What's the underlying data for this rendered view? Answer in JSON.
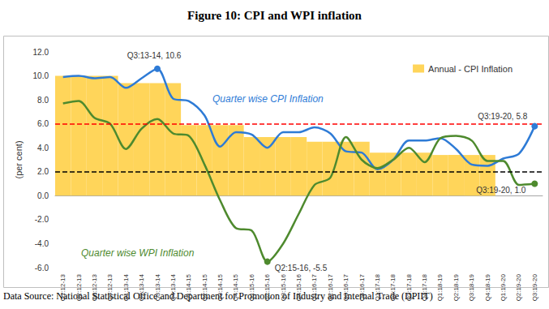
{
  "chart_data": {
    "type": "line",
    "title": "Figure 10: CPI and WPI inflation",
    "y_label": "(per cent)",
    "source": "Data Source: National Statistical Office and Department for Promotion of Industry and Internal Trade (DPIIT)",
    "categories": [
      "Q1:12-13",
      "Q2:12-13",
      "Q3:12-13",
      "Q4:12-13",
      "Q1:13-14",
      "Q2:13-14",
      "Q3:13-14",
      "Q4:13-14",
      "Q1:14-15",
      "Q2:14-15",
      "Q3:14-15",
      "Q4:14-15",
      "Q1:15-16",
      "Q2:15-16",
      "Q3:15-16",
      "Q4:15-16",
      "Q1:16-17",
      "Q2:16-17",
      "Q3:16-17",
      "Q4:16-17",
      "Q1:17-18",
      "Q2:17-18",
      "Q3:17-18",
      "Q4:17-18",
      "Q1:18-19",
      "Q2:18-19",
      "Q3:18-19",
      "Q4:18-19",
      "Q1:19-20",
      "Q2:19-20",
      "Q3:19-20"
    ],
    "series": [
      {
        "name": "Annual - CPI Inflation",
        "type": "bar",
        "color": "#FFD55A",
        "values": [
          10.0,
          10.0,
          10.0,
          10.0,
          9.4,
          9.4,
          9.4,
          9.4,
          5.9,
          5.9,
          5.9,
          5.9,
          4.9,
          4.9,
          4.9,
          4.9,
          4.5,
          4.5,
          4.5,
          4.5,
          3.6,
          3.6,
          3.6,
          3.6,
          3.4,
          3.4,
          3.4,
          3.4,
          null,
          null,
          null
        ]
      },
      {
        "name": "Quarter wise CPI Inflation",
        "type": "line",
        "color": "#2E7BD6",
        "values": [
          9.9,
          10.0,
          9.8,
          9.9,
          9.0,
          9.8,
          10.6,
          8.1,
          7.9,
          6.7,
          4.1,
          5.3,
          5.1,
          4.0,
          5.3,
          5.3,
          5.7,
          5.2,
          3.7,
          3.6,
          2.2,
          3.0,
          4.6,
          4.6,
          4.8,
          3.9,
          2.6,
          2.5,
          3.1,
          3.5,
          5.8
        ]
      },
      {
        "name": "Quarter wise WPI Inflation",
        "type": "line",
        "color": "#4E8A2E",
        "values": [
          7.7,
          7.9,
          6.5,
          6.0,
          3.9,
          5.6,
          6.4,
          5.2,
          5.0,
          2.6,
          -0.4,
          -2.7,
          -2.9,
          -5.5,
          -4.0,
          -1.5,
          0.9,
          1.5,
          4.9,
          3.0,
          2.3,
          3.0,
          4.0,
          2.8,
          4.8,
          5.0,
          4.6,
          2.9,
          2.9,
          0.9,
          1.0
        ]
      }
    ],
    "ylim": [
      -6,
      12
    ],
    "yticks": [
      {
        "value": -6,
        "label": "-6.0"
      },
      {
        "value": -4,
        "label": "-4.0"
      },
      {
        "value": -2,
        "label": "-2.0"
      },
      {
        "value": 0,
        "label": "0.0"
      },
      {
        "value": 2,
        "label": "2.0"
      },
      {
        "value": 4,
        "label": "4.0"
      },
      {
        "value": 6,
        "label": "6.0"
      },
      {
        "value": 8,
        "label": "8.0"
      },
      {
        "value": 10,
        "label": "10.0"
      },
      {
        "value": 12,
        "label": "12.0"
      }
    ],
    "grid": false,
    "legend": "top-right",
    "reference_lines": [
      {
        "value": 6,
        "color": "#FF0000",
        "line_style": "dashed"
      },
      {
        "value": 2,
        "color": "#000000",
        "line_style": "dashed"
      }
    ],
    "annotations": [
      {
        "text": "Q3:13-14, 10.6",
        "series": "Quarter wise CPI Inflation",
        "category": "Q3:13-14",
        "value": 10.6
      },
      {
        "text": "Q3:19-20, 5.8",
        "series": "Quarter wise CPI Inflation",
        "category": "Q3:19-20",
        "value": 5.8
      },
      {
        "text": "Q2:15-16, -5.5",
        "series": "Quarter wise WPI Inflation",
        "category": "Q2:15-16",
        "value": -5.5
      },
      {
        "text": "Q3:19-20, 1.0",
        "series": "Quarter wise WPI Inflation",
        "category": "Q3:19-20",
        "value": 1.0
      }
    ]
  }
}
